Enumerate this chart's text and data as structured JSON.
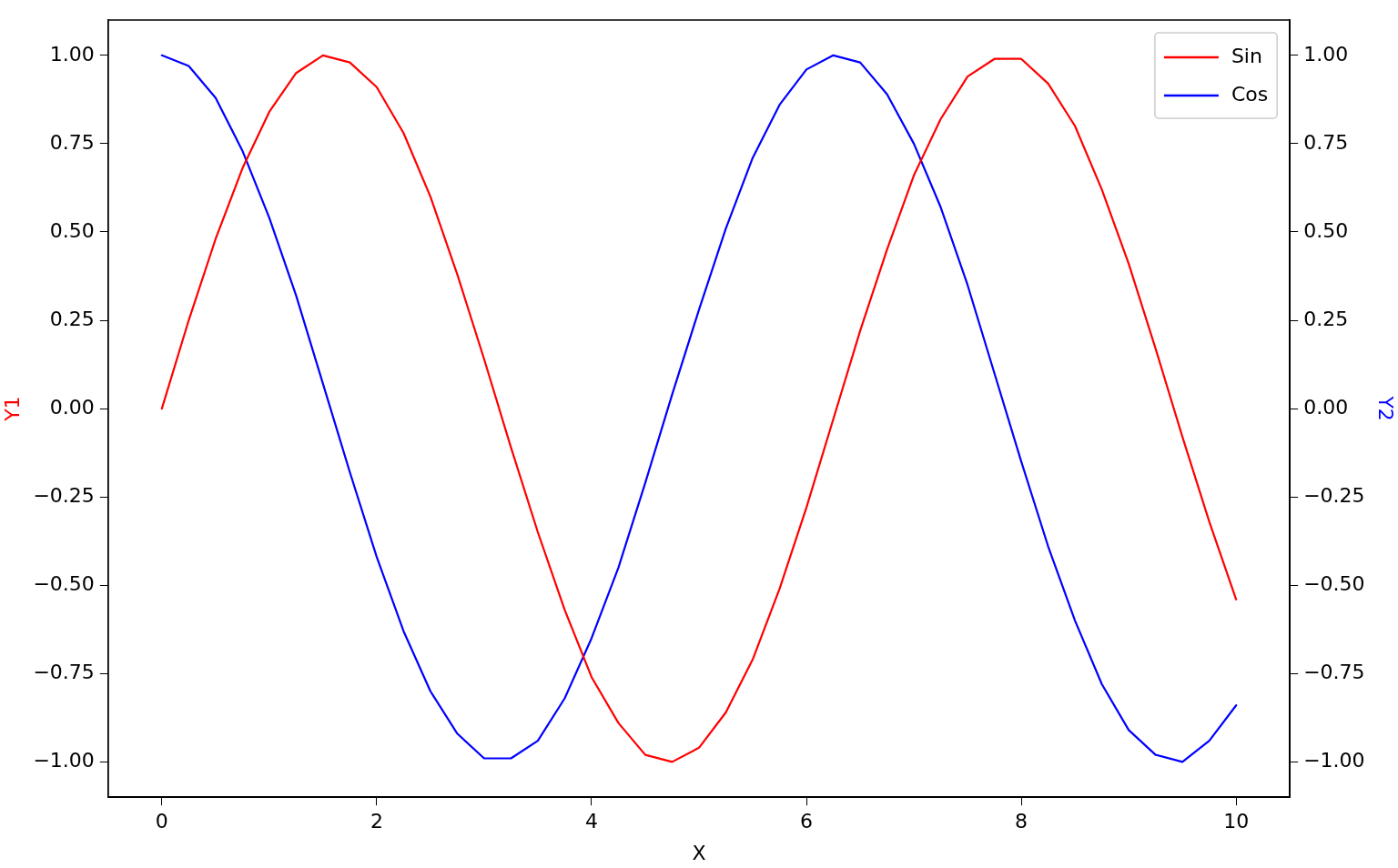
{
  "chart_data": {
    "type": "line",
    "xlabel": "X",
    "ylabel": "Y1",
    "y2label": "Y2",
    "x": [
      0,
      0.25,
      0.5,
      0.75,
      1,
      1.25,
      1.5,
      1.75,
      2,
      2.25,
      2.5,
      2.75,
      3,
      3.25,
      3.5,
      3.75,
      4,
      4.25,
      4.5,
      4.75,
      5,
      5.25,
      5.5,
      5.75,
      6,
      6.25,
      6.5,
      6.75,
      7,
      7.25,
      7.5,
      7.75,
      8,
      8.25,
      8.5,
      8.75,
      9,
      9.25,
      9.5,
      9.75,
      10
    ],
    "series": [
      {
        "name": "Sin",
        "color": "#ff0000",
        "axis": "y",
        "values": [
          0,
          0.25,
          0.48,
          0.68,
          0.84,
          0.95,
          1.0,
          0.98,
          0.91,
          0.78,
          0.6,
          0.38,
          0.14,
          -0.11,
          -0.35,
          -0.57,
          -0.76,
          -0.89,
          -0.98,
          -1.0,
          -0.96,
          -0.86,
          -0.71,
          -0.51,
          -0.28,
          -0.03,
          0.22,
          0.45,
          0.66,
          0.82,
          0.94,
          0.99,
          0.99,
          0.92,
          0.8,
          0.62,
          0.41,
          0.17,
          -0.08,
          -0.32,
          -0.54
        ]
      },
      {
        "name": "Cos",
        "color": "#0000ff",
        "axis": "y2",
        "values": [
          1.0,
          0.97,
          0.88,
          0.73,
          0.54,
          0.32,
          0.07,
          -0.18,
          -0.42,
          -0.63,
          -0.8,
          -0.92,
          -0.99,
          -0.99,
          -0.94,
          -0.82,
          -0.65,
          -0.45,
          -0.21,
          0.04,
          0.28,
          0.51,
          0.71,
          0.86,
          0.96,
          1.0,
          0.98,
          0.89,
          0.75,
          0.57,
          0.35,
          0.1,
          -0.15,
          -0.39,
          -0.6,
          -0.78,
          -0.91,
          -0.98,
          -1.0,
          -0.94,
          -0.84
        ]
      }
    ],
    "xlim": [
      -0.5,
      10.5
    ],
    "xticks": [
      0,
      2,
      4,
      6,
      8,
      10
    ],
    "ylim": [
      -1.1,
      1.1
    ],
    "yticks": [
      {
        "value": -1,
        "label": "−1.00"
      },
      {
        "value": -0.75,
        "label": "−0.75"
      },
      {
        "value": -0.5,
        "label": "−0.50"
      },
      {
        "value": -0.25,
        "label": "−0.25"
      },
      {
        "value": 0,
        "label": "0.00"
      },
      {
        "value": 0.25,
        "label": "0.25"
      },
      {
        "value": 0.5,
        "label": "0.50"
      },
      {
        "value": 0.75,
        "label": "0.75"
      },
      {
        "value": 1,
        "label": "1.00"
      }
    ],
    "y2lim": [
      -1.1,
      1.1
    ],
    "y2ticks": [
      {
        "value": -1,
        "label": "−1.00"
      },
      {
        "value": -0.75,
        "label": "−0.75"
      },
      {
        "value": -0.5,
        "label": "−0.50"
      },
      {
        "value": -0.25,
        "label": "−0.25"
      },
      {
        "value": 0,
        "label": "0.00"
      },
      {
        "value": 0.25,
        "label": "0.25"
      },
      {
        "value": 0.5,
        "label": "0.50"
      },
      {
        "value": 0.75,
        "label": "0.75"
      },
      {
        "value": 1,
        "label": "1.00"
      }
    ],
    "legend": "top right",
    "grid": false,
    "marker": "none",
    "line_style": "solid"
  }
}
